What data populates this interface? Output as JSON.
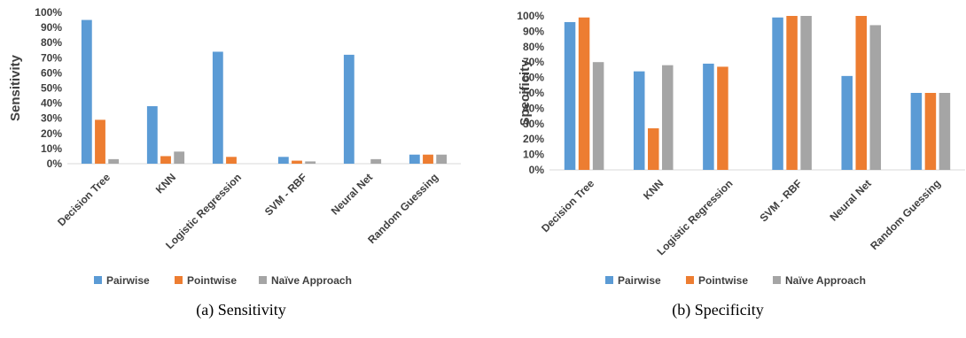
{
  "chart_data": [
    {
      "type": "bar",
      "ylabel": "Sensitivity",
      "caption": "(a) Sensitivity",
      "ylim": [
        0,
        100
      ],
      "y_ticks": [
        "0%",
        "10%",
        "20%",
        "30%",
        "40%",
        "50%",
        "60%",
        "70%",
        "80%",
        "90%",
        "100%"
      ],
      "categories": [
        "Decision Tree",
        "KNN",
        "Logistic Regression",
        "SVM - RBF",
        "Neural Net",
        "Random Guessing"
      ],
      "series": [
        {
          "name": "Pairwise",
          "color": "#5b9bd5",
          "values": [
            95,
            38,
            74,
            4.5,
            72,
            6
          ]
        },
        {
          "name": "Pointwise",
          "color": "#ed7d31",
          "values": [
            29,
            5,
            4.5,
            2,
            0,
            6
          ]
        },
        {
          "name": "Naïve Approach",
          "color": "#a5a5a5",
          "values": [
            3,
            8,
            0,
            1.5,
            3,
            6
          ]
        }
      ],
      "legend_position": "bottom",
      "grid": false
    },
    {
      "type": "bar",
      "ylabel": "Specificity",
      "caption": "(b) Specificity",
      "ylim": [
        0,
        100
      ],
      "y_ticks": [
        "0%",
        "10%",
        "20%",
        "30%",
        "40%",
        "50%",
        "60%",
        "70%",
        "80%",
        "90%",
        "100%"
      ],
      "categories": [
        "Decision Tree",
        "KNN",
        "Logistic Regression",
        "SVM - RBF",
        "Neural Net",
        "Random Guessing"
      ],
      "series": [
        {
          "name": "Pairwise",
          "color": "#5b9bd5",
          "values": [
            96,
            64,
            69,
            99,
            61,
            50
          ]
        },
        {
          "name": "Pointwise",
          "color": "#ed7d31",
          "values": [
            99,
            27,
            67,
            100,
            100,
            50
          ]
        },
        {
          "name": "Naïve Approach",
          "color": "#a5a5a5",
          "values": [
            70,
            68,
            0,
            100,
            94,
            50
          ]
        }
      ],
      "legend_position": "bottom",
      "grid": false
    }
  ]
}
